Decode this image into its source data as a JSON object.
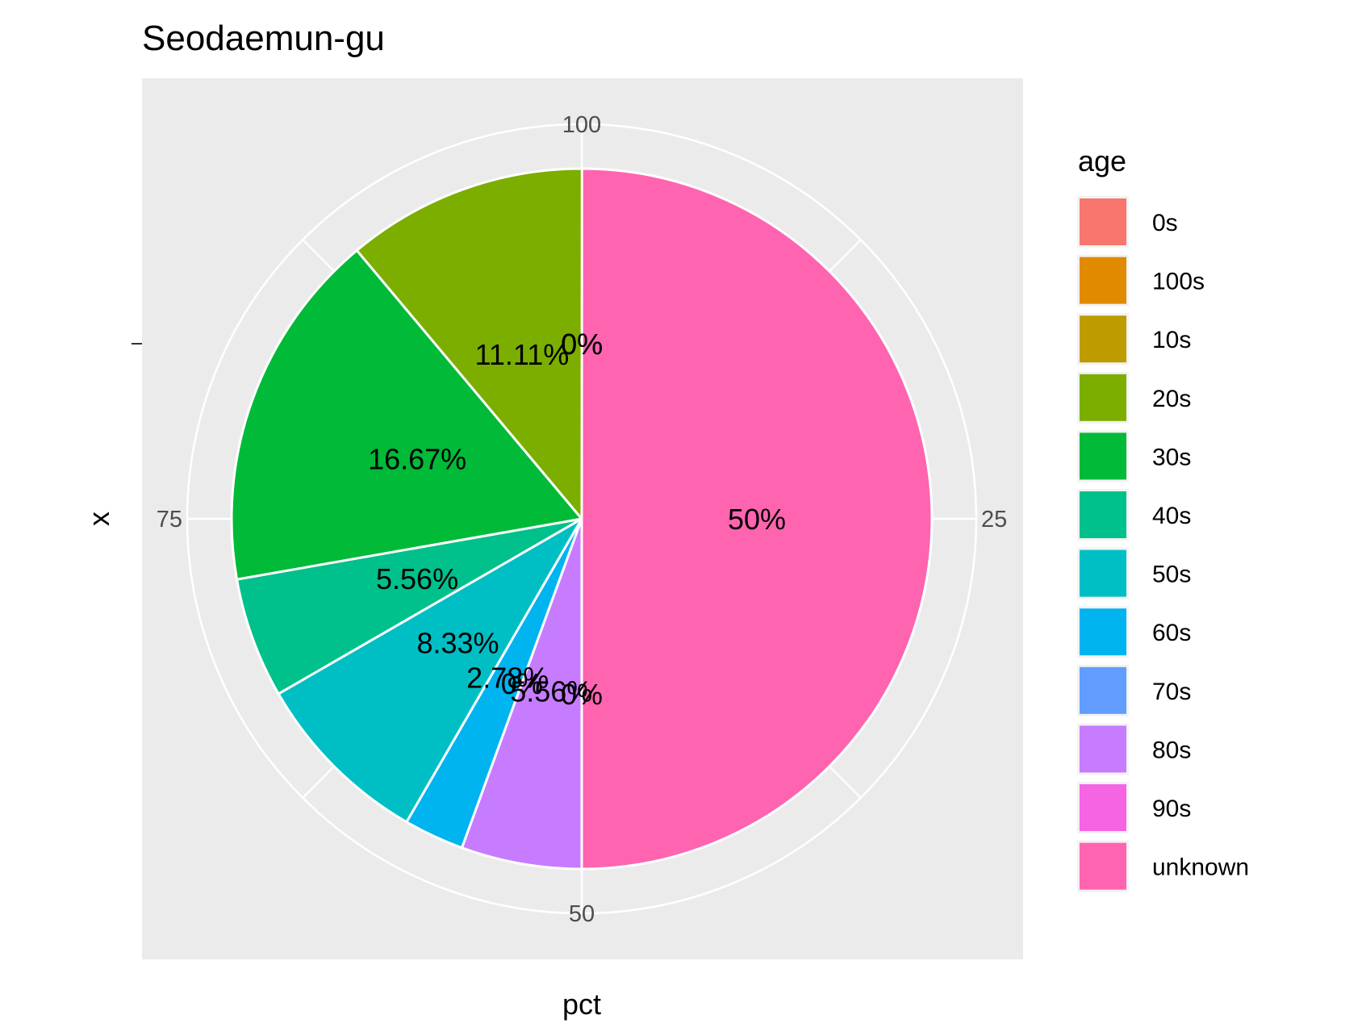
{
  "chart_data": {
    "type": "pie",
    "title": "Seodaemun-gu",
    "xlabel": "pct",
    "ylabel": "x",
    "radial_ticks": [
      "100",
      "25",
      "50",
      "75"
    ],
    "legend_title": "age",
    "legend_position": "right",
    "slices": [
      {
        "label": "0s",
        "value": 0,
        "pct_label": "0%",
        "color": "#F8766D"
      },
      {
        "label": "100s",
        "value": 0,
        "pct_label": "0%",
        "color": "#E18A00"
      },
      {
        "label": "10s",
        "value": 0,
        "pct_label": "0%",
        "color": "#BE9C00"
      },
      {
        "label": "20s",
        "value": 11.11,
        "pct_label": "11.11%",
        "color": "#8CAB00"
      },
      {
        "label": "30s",
        "value": 16.67,
        "pct_label": "16.67%",
        "color": "#24B700"
      },
      {
        "label": "40s",
        "value": 5.56,
        "pct_label": "5.56%",
        "color": "#00BE70"
      },
      {
        "label": "50s",
        "value": 8.33,
        "pct_label": "8.33%",
        "color": "#00C1AB"
      },
      {
        "label": "60s",
        "value": 2.78,
        "pct_label": "2.78%",
        "color": "#00BBDA"
      },
      {
        "label": "70s",
        "value": 0,
        "pct_label": "0%",
        "color": "#00ACFC"
      },
      {
        "label": "80s",
        "value": 5.56,
        "pct_label": "5.56%",
        "color": "#8B93FF"
      },
      {
        "label": "90s",
        "value": 0,
        "pct_label": "0%",
        "color": "#D575FE"
      },
      {
        "label": "unknown",
        "value": 50,
        "pct_label": "50%",
        "color": "#FF65AC"
      }
    ],
    "render_colors": [
      "#F8766D",
      "#E18A00",
      "#BE9C00",
      "#7CAE00",
      "#00BA38",
      "#00C08B",
      "#00BFC4",
      "#00B4F0",
      "#619CFF",
      "#C77CFF",
      "#F564E3",
      "#FF64B0"
    ],
    "legend_colors": [
      "#F8766D",
      "#E18A00",
      "#BE9C00",
      "#7CAE00",
      "#00BA38",
      "#00C08B",
      "#00BFC4",
      "#00B4F0",
      "#619CFF",
      "#C77CFF",
      "#F564E3",
      "#FF64B0"
    ],
    "panel_background": "#EBEBEB",
    "grid_color": "#FFFFFF",
    "grid": true
  }
}
